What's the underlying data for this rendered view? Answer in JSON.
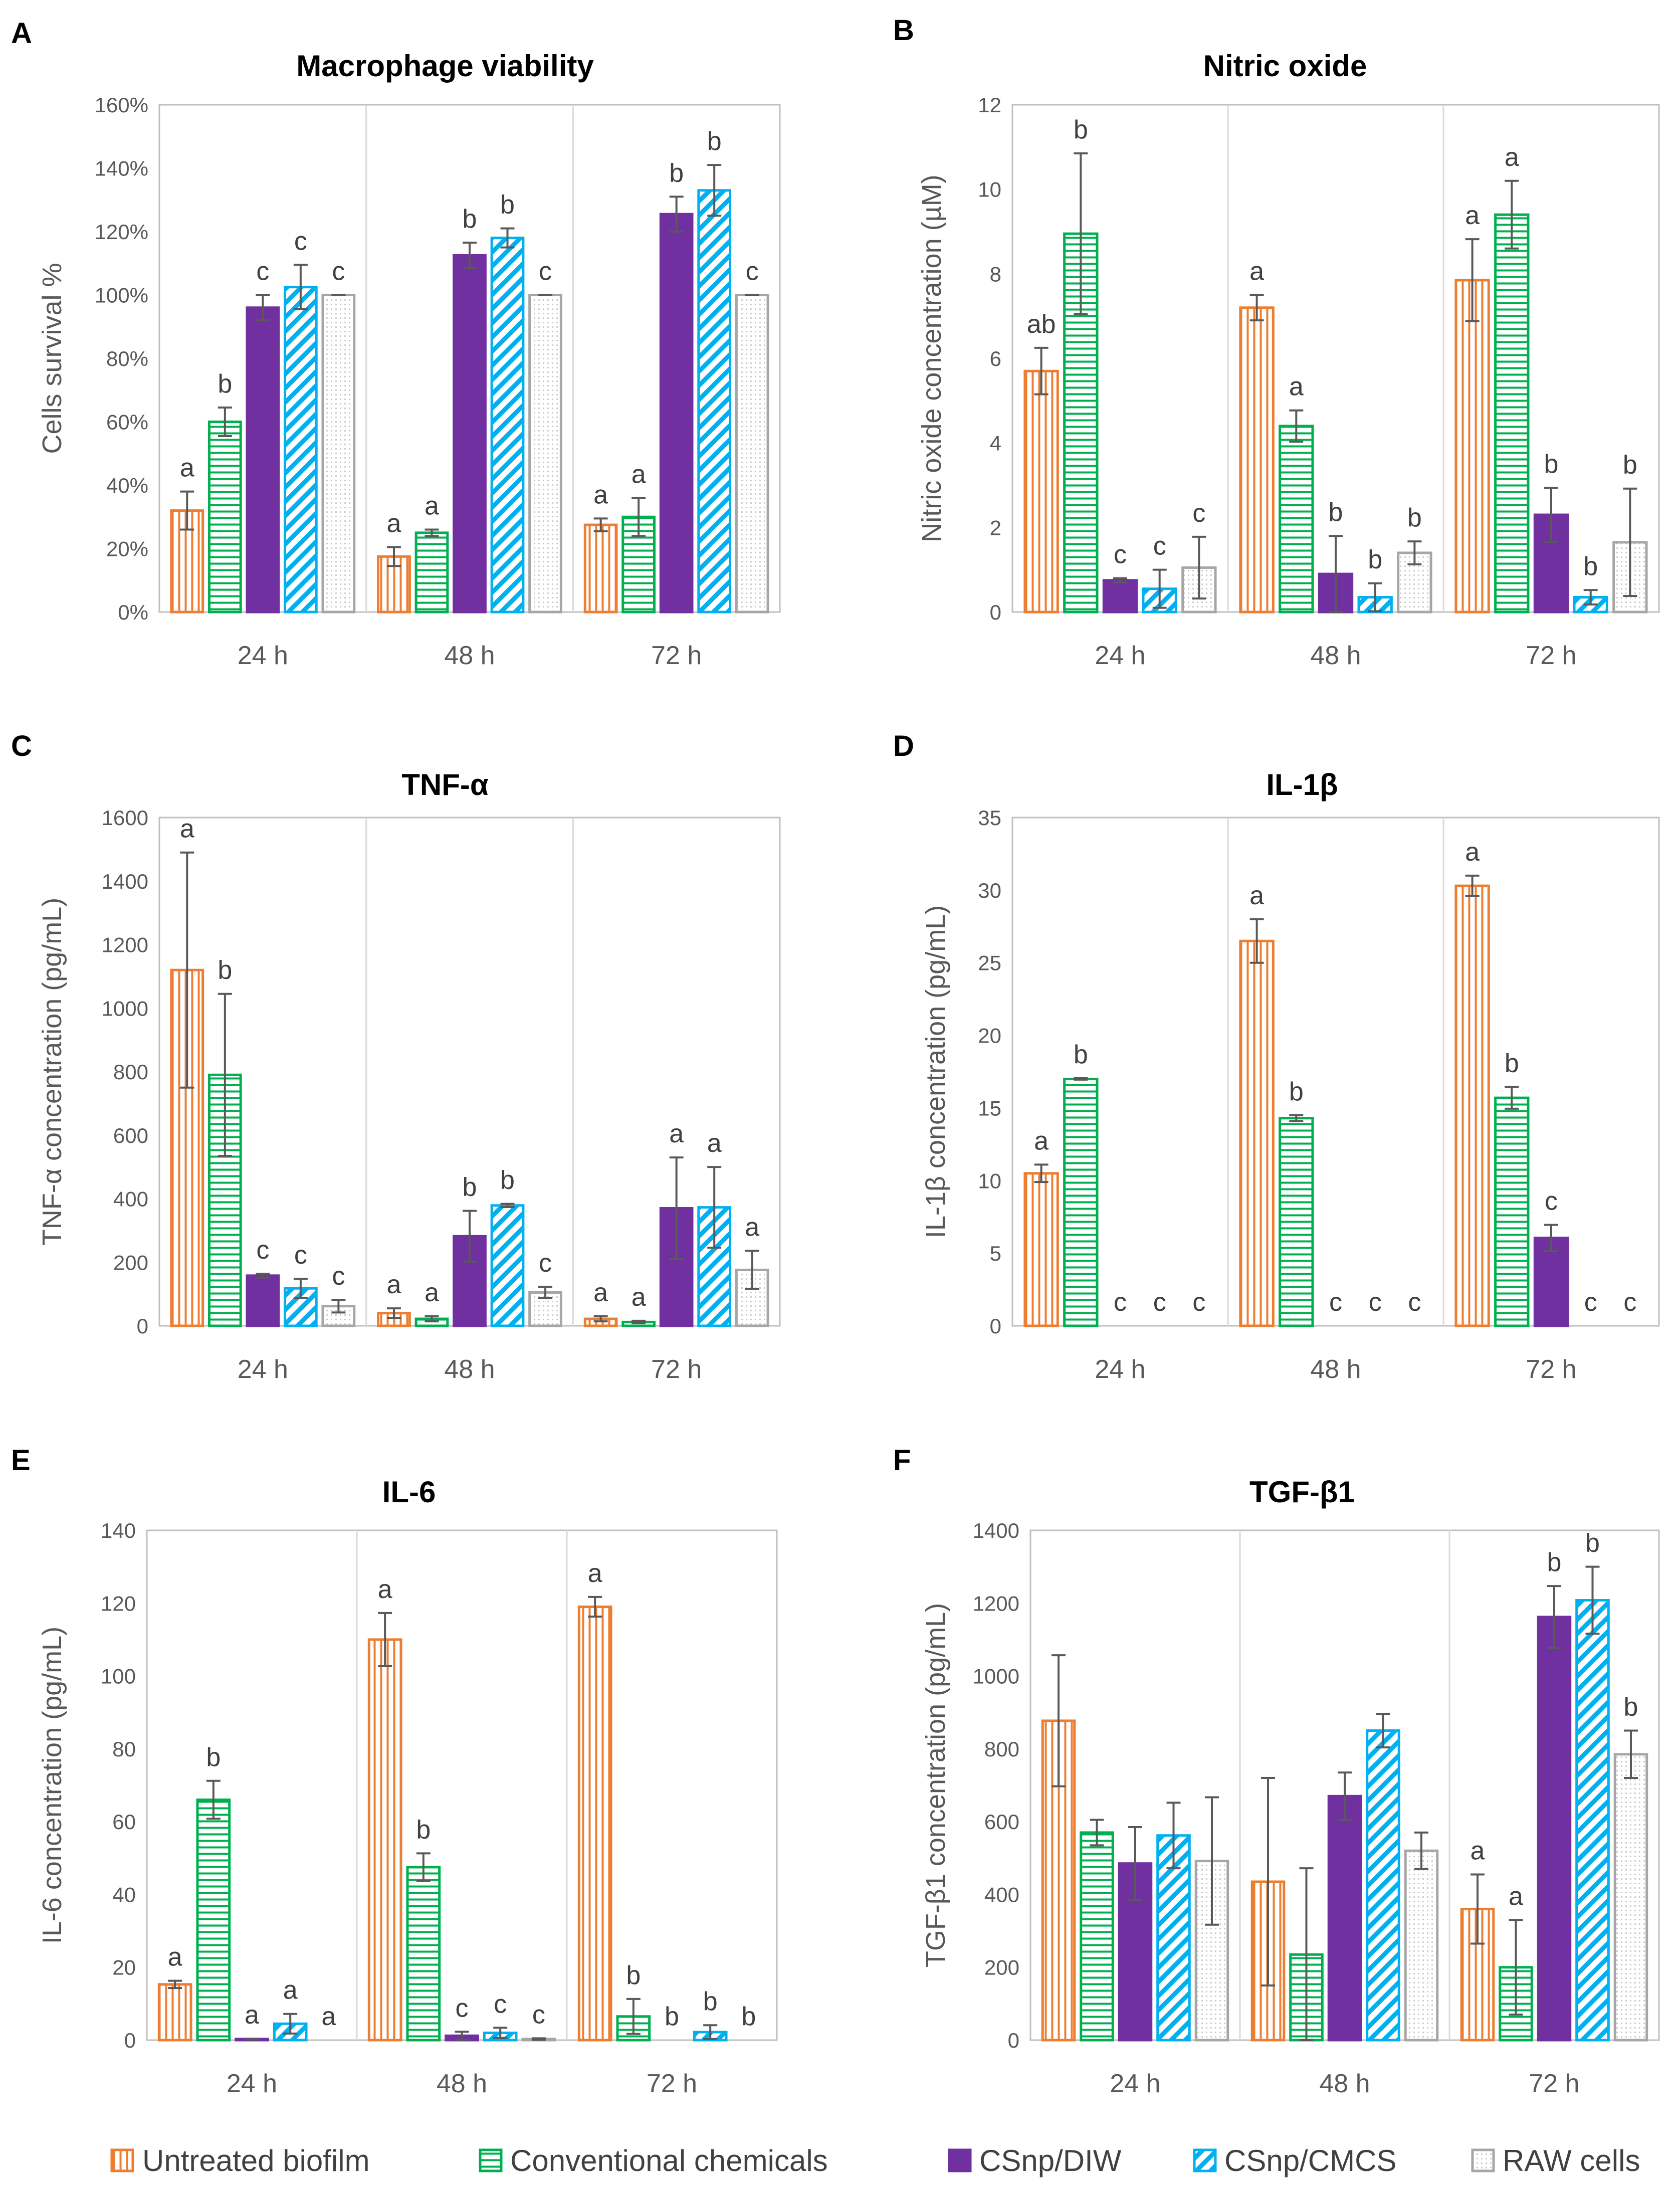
{
  "legend": {
    "items": [
      {
        "label": "Untreated biofilm",
        "color": "#ED7D31"
      },
      {
        "label": "Conventional chemicals",
        "color": "#00B050"
      },
      {
        "label": "CSnp/DIW",
        "color": "#7030A0"
      },
      {
        "label": "CSnp/CMCS",
        "color": "#00B0F0"
      },
      {
        "label": "RAW cells",
        "color": "#A6A6A6"
      }
    ]
  },
  "chart_data": [
    {
      "panel": "A",
      "type": "bar",
      "title": "Macrophage viability",
      "ylabel": "Cells survival %",
      "categories": [
        "24 h",
        "48 h",
        "72 h"
      ],
      "ylim": [
        0,
        160
      ],
      "yticks": [
        0,
        20,
        40,
        60,
        80,
        100,
        120,
        140,
        160
      ],
      "ytick_labels": [
        "0%",
        "20%",
        "40%",
        "60%",
        "80%",
        "100%",
        "120%",
        "140%",
        "160%"
      ],
      "series": [
        {
          "name": "Untreated biofilm",
          "values": [
            32,
            17.5,
            27.5
          ],
          "errors": [
            6,
            3,
            2
          ],
          "letters": [
            "a",
            "a",
            "a"
          ]
        },
        {
          "name": "Conventional chemicals",
          "values": [
            60,
            25,
            30
          ],
          "errors": [
            4.5,
            1,
            6
          ],
          "letters": [
            "b",
            "a",
            "a"
          ]
        },
        {
          "name": "CSnp/DIW",
          "values": [
            96,
            112.5,
            125.5
          ],
          "errors": [
            4,
            4,
            5.5
          ],
          "letters": [
            "c",
            "b",
            "b"
          ]
        },
        {
          "name": "CSnp/CMCS",
          "values": [
            102.5,
            118,
            133
          ],
          "errors": [
            7,
            3,
            8
          ],
          "letters": [
            "c",
            "b",
            "b"
          ]
        },
        {
          "name": "RAW cells",
          "values": [
            100,
            100,
            100
          ],
          "errors": [
            0,
            0,
            0
          ],
          "letters": [
            "c",
            "c",
            "c"
          ]
        }
      ]
    },
    {
      "panel": "B",
      "type": "bar",
      "title": "Nitric oxide",
      "ylabel": "Nitric oxide concentration (µM)",
      "categories": [
        "24 h",
        "48 h",
        "72 h"
      ],
      "ylim": [
        0,
        12
      ],
      "yticks": [
        0,
        2,
        4,
        6,
        8,
        10,
        12
      ],
      "ytick_labels": [
        "0",
        "2",
        "4",
        "6",
        "8",
        "10",
        "12"
      ],
      "series": [
        {
          "name": "Untreated biofilm",
          "values": [
            5.7,
            7.2,
            7.85
          ],
          "errors": [
            0.55,
            0.3,
            0.97
          ],
          "letters": [
            "ab",
            "a",
            "a"
          ]
        },
        {
          "name": "Conventional chemicals",
          "values": [
            8.95,
            4.4,
            9.4
          ],
          "errors": [
            1.9,
            0.37,
            0.8
          ],
          "letters": [
            "b",
            "a",
            "a"
          ]
        },
        {
          "name": "CSnp/DIW",
          "values": [
            0.75,
            0.9,
            2.3
          ],
          "errors": [
            0.05,
            0.9,
            0.64
          ],
          "letters": [
            "c",
            "b",
            "b"
          ]
        },
        {
          "name": "CSnp/CMCS",
          "values": [
            0.55,
            0.35,
            0.35
          ],
          "errors": [
            0.45,
            0.33,
            0.17
          ],
          "letters": [
            "c",
            "b",
            "b"
          ]
        },
        {
          "name": "RAW cells",
          "values": [
            1.05,
            1.4,
            1.65
          ],
          "errors": [
            0.73,
            0.27,
            1.27
          ],
          "letters": [
            "c",
            "b",
            "b"
          ]
        }
      ]
    },
    {
      "panel": "C",
      "type": "bar",
      "title": "TNF-α",
      "ylabel": "TNF-α concentration (pg/mL)",
      "categories": [
        "24 h",
        "48 h",
        "72 h"
      ],
      "ylim": [
        0,
        1600
      ],
      "yticks": [
        0,
        200,
        400,
        600,
        800,
        1000,
        1200,
        1400,
        1600
      ],
      "ytick_labels": [
        "0",
        "200",
        "400",
        "600",
        "800",
        "1000",
        "1200",
        "1400",
        "1600"
      ],
      "series": [
        {
          "name": "Untreated biofilm",
          "values": [
            1120,
            40,
            22
          ],
          "errors": [
            370,
            15,
            8
          ],
          "letters": [
            "a",
            "a",
            "a"
          ]
        },
        {
          "name": "Conventional chemicals",
          "values": [
            790,
            22,
            12
          ],
          "errors": [
            255,
            8,
            4
          ],
          "letters": [
            "b",
            "a",
            "a"
          ]
        },
        {
          "name": "CSnp/DIW",
          "values": [
            158,
            282,
            370
          ],
          "errors": [
            6,
            80,
            160
          ],
          "letters": [
            "c",
            "b",
            "a"
          ]
        },
        {
          "name": "CSnp/CMCS",
          "values": [
            118,
            379,
            373
          ],
          "errors": [
            30,
            5,
            127
          ],
          "letters": [
            "c",
            "b",
            "a"
          ]
        },
        {
          "name": "RAW cells",
          "values": [
            62,
            105,
            176
          ],
          "errors": [
            20,
            18,
            60
          ],
          "letters": [
            "c",
            "c",
            "a"
          ]
        }
      ]
    },
    {
      "panel": "D",
      "type": "bar",
      "title": "IL-1β",
      "ylabel": "IL-1β concentration (pg/mL)",
      "categories": [
        "24 h",
        "48 h",
        "72 h"
      ],
      "ylim": [
        0,
        35
      ],
      "yticks": [
        0,
        5,
        10,
        15,
        20,
        25,
        30,
        35
      ],
      "ytick_labels": [
        "0",
        "5",
        "10",
        "15",
        "20",
        "25",
        "30",
        "35"
      ],
      "series": [
        {
          "name": "Untreated biofilm",
          "values": [
            10.5,
            26.5,
            30.3
          ],
          "errors": [
            0.6,
            1.5,
            0.7
          ],
          "letters": [
            "a",
            "a",
            "a"
          ]
        },
        {
          "name": "Conventional chemicals",
          "values": [
            17,
            14.3,
            15.7
          ],
          "errors": [
            0.05,
            0.2,
            0.75
          ],
          "letters": [
            "b",
            "b",
            "b"
          ]
        },
        {
          "name": "CSnp/DIW",
          "values": [
            0,
            0,
            6.05
          ],
          "errors": [
            null,
            null,
            0.9
          ],
          "letters": [
            "c",
            "c",
            "c"
          ]
        },
        {
          "name": "CSnp/CMCS",
          "values": [
            0,
            0,
            0
          ],
          "errors": [
            null,
            null,
            null
          ],
          "letters": [
            "c",
            "c",
            "c"
          ]
        },
        {
          "name": "RAW cells",
          "values": [
            0,
            0,
            0
          ],
          "errors": [
            null,
            null,
            null
          ],
          "letters": [
            "c",
            "c",
            "c"
          ]
        }
      ]
    },
    {
      "panel": "E",
      "type": "bar",
      "title": "IL-6",
      "ylabel": "IL-6 concentration (pg/mL)",
      "categories": [
        "24 h",
        "48 h",
        "72 h"
      ],
      "ylim": [
        0,
        140
      ],
      "yticks": [
        0,
        20,
        40,
        60,
        80,
        100,
        120,
        140
      ],
      "ytick_labels": [
        "0",
        "20",
        "40",
        "60",
        "80",
        "100",
        "120",
        "140"
      ],
      "series": [
        {
          "name": "Untreated biofilm",
          "values": [
            15.3,
            110,
            119
          ],
          "errors": [
            1,
            7.3,
            2.7
          ],
          "letters": [
            "a",
            "a",
            "a"
          ]
        },
        {
          "name": "Conventional chemicals",
          "values": [
            66,
            47.5,
            6.5
          ],
          "errors": [
            5.2,
            3.8,
            4.8
          ],
          "letters": [
            "b",
            "b",
            "b"
          ]
        },
        {
          "name": "CSnp/DIW",
          "values": [
            0.3,
            1.2,
            0
          ],
          "errors": [
            0.1,
            1.1,
            null
          ],
          "letters": [
            "a",
            "c",
            "b"
          ]
        },
        {
          "name": "CSnp/CMCS",
          "values": [
            4.5,
            2,
            2.2
          ],
          "errors": [
            2.7,
            1.4,
            1.9
          ],
          "letters": [
            "a",
            "c",
            "b"
          ]
        },
        {
          "name": "RAW cells",
          "values": [
            0,
            0.3,
            0
          ],
          "errors": [
            null,
            0.2,
            null
          ],
          "letters": [
            "a",
            "c",
            "b"
          ]
        }
      ]
    },
    {
      "panel": "F",
      "type": "bar",
      "title": "TGF-β1",
      "ylabel": "TGF-β1 concentration (pg/mL)",
      "categories": [
        "24 h",
        "48 h",
        "72 h"
      ],
      "ylim": [
        0,
        1400
      ],
      "yticks": [
        0,
        200,
        400,
        600,
        800,
        1000,
        1200,
        1400
      ],
      "ytick_labels": [
        "0",
        "200",
        "400",
        "600",
        "800",
        "1000",
        "1200",
        "1400"
      ],
      "series": [
        {
          "name": "Untreated biofilm",
          "values": [
            877,
            435,
            360
          ],
          "errors": [
            180,
            285,
            95
          ],
          "letters": [
            null,
            null,
            "a"
          ]
        },
        {
          "name": "Conventional chemicals",
          "values": [
            570,
            235,
            200
          ],
          "errors": [
            35,
            237,
            130
          ],
          "letters": [
            null,
            null,
            "a"
          ]
        },
        {
          "name": "CSnp/DIW",
          "values": [
            485,
            670,
            1162
          ],
          "errors": [
            100,
            65,
            85
          ],
          "letters": [
            null,
            null,
            "b"
          ]
        },
        {
          "name": "CSnp/CMCS",
          "values": [
            562,
            850,
            1208
          ],
          "errors": [
            90,
            46,
            92
          ],
          "letters": [
            null,
            null,
            "b"
          ]
        },
        {
          "name": "RAW cells",
          "values": [
            492,
            520,
            785
          ],
          "errors": [
            175,
            50,
            65
          ],
          "letters": [
            null,
            null,
            "b"
          ]
        }
      ]
    }
  ]
}
